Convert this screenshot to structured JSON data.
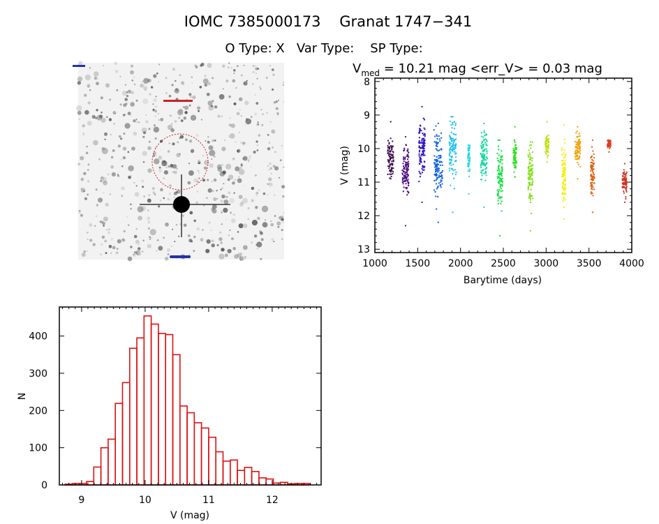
{
  "header": {
    "title": "IOMC 7385000173    Granat 1747−341",
    "subtitle": "O Type: X   Var Type:    SP Type:"
  },
  "chart_data": [
    {
      "type": "image",
      "description_label": "sky-finding-chart",
      "colors": {
        "aperture_circle": "#cc2222",
        "stars": "#000000",
        "background": "#ffffff"
      }
    },
    {
      "type": "scatter",
      "title_main": "V",
      "title_sub": "med",
      "title_rest": " = 10.21 mag <err_V> = 0.03 mag",
      "xlabel": "Barytime (days)",
      "ylabel": "V (mag)",
      "xlim": [
        1000,
        4000
      ],
      "ylim": [
        13.1,
        7.9
      ],
      "y_inverted": true,
      "xticks": [
        1000,
        1500,
        2000,
        2500,
        3000,
        3500,
        4000
      ],
      "yticks": [
        8,
        9,
        10,
        11,
        12,
        13
      ],
      "seasons": [
        {
          "t": [
            1150,
            1220
          ],
          "v": [
            9.2,
            10.9
          ],
          "vmed": 10.3,
          "color": "#3a0a4a"
        },
        {
          "t": [
            1320,
            1395
          ],
          "v": [
            9.65,
            12.3
          ],
          "vmed": 10.7,
          "color": "#4b0a80"
        },
        {
          "t": [
            1515,
            1585
          ],
          "v": [
            8.75,
            11.6
          ],
          "vmed": 10.0,
          "color": "#2a10c0"
        },
        {
          "t": [
            1690,
            1790
          ],
          "v": [
            9.25,
            12.2
          ],
          "vmed": 10.5,
          "color": "#1060e0"
        },
        {
          "t": [
            1870,
            1950
          ],
          "v": [
            9.05,
            11.9
          ],
          "vmed": 10.0,
          "color": "#20c0f0"
        },
        {
          "t": [
            2085,
            2110
          ],
          "v": [
            9.9,
            11.35
          ],
          "vmed": 10.3,
          "color": "#20d8e0"
        },
        {
          "t": [
            2235,
            2315
          ],
          "v": [
            9.25,
            11.75
          ],
          "vmed": 10.2,
          "color": "#10d8a0"
        },
        {
          "t": [
            2430,
            2490
          ],
          "v": [
            9.75,
            12.6
          ],
          "vmed": 10.8,
          "color": "#10e040"
        },
        {
          "t": [
            2615,
            2655
          ],
          "v": [
            9.35,
            10.85
          ],
          "vmed": 10.2,
          "color": "#30e020"
        },
        {
          "t": [
            2790,
            2845
          ],
          "v": [
            9.8,
            12.45
          ],
          "vmed": 10.8,
          "color": "#80e010"
        },
        {
          "t": [
            2990,
            3030
          ],
          "v": [
            9.2,
            10.4
          ],
          "vmed": 9.9,
          "color": "#c0e010"
        },
        {
          "t": [
            3185,
            3230
          ],
          "v": [
            9.3,
            12.1
          ],
          "vmed": 10.8,
          "color": "#f0f000"
        },
        {
          "t": [
            3335,
            3400
          ],
          "v": [
            9.35,
            10.9
          ],
          "vmed": 10.0,
          "color": "#f0a000"
        },
        {
          "t": [
            3520,
            3565
          ],
          "v": [
            9.75,
            11.9
          ],
          "vmed": 10.8,
          "color": "#e06010"
        },
        {
          "t": [
            3715,
            3755
          ],
          "v": [
            9.75,
            10.1
          ],
          "vmed": 9.85,
          "color": "#e04020"
        },
        {
          "t": [
            3890,
            3945
          ],
          "v": [
            10.45,
            11.6
          ],
          "vmed": 11.0,
          "color": "#d03020"
        }
      ]
    },
    {
      "type": "bar",
      "subtype": "histogram",
      "xlabel": "V (mag)",
      "ylabel": "N",
      "xlim": [
        8.65,
        12.77
      ],
      "ylim": [
        0,
        478
      ],
      "xticks": [
        9,
        10,
        11,
        12
      ],
      "yticks": [
        0,
        100,
        200,
        300,
        400
      ],
      "bin_start": 8.74,
      "bin_width": 0.113,
      "counts": [
        2,
        4,
        4,
        9,
        48,
        100,
        123,
        219,
        275,
        367,
        395,
        454,
        432,
        407,
        404,
        350,
        212,
        194,
        167,
        153,
        128,
        89,
        64,
        67,
        39,
        47,
        36,
        19,
        16,
        5,
        7,
        3,
        4,
        4
      ],
      "color": "#dd1111"
    }
  ]
}
